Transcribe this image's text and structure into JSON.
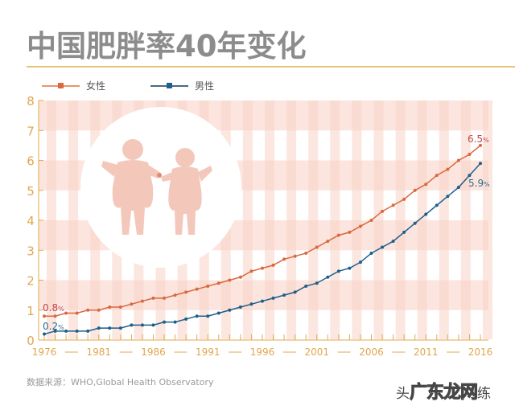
{
  "header": {
    "title": "中国肥胖率40年变化"
  },
  "legend": {
    "items": [
      {
        "label": "女性",
        "color": "#d9693f"
      },
      {
        "label": "男性",
        "color": "#1f5f8b"
      }
    ]
  },
  "annotations": {
    "female_start": "0.8",
    "male_start": "0.2",
    "female_end": "6.5",
    "male_end": "5.9",
    "pct_suffix": "%"
  },
  "footer": {
    "source": "数据来源：WHO,Global Health Observatory",
    "watermark_prefix": "头",
    "watermark_big": "广东龙网",
    "watermark_suffix": "练"
  },
  "colors": {
    "axis": "#e2a94e",
    "tick_label": "#e0a74f",
    "female": "#d9693f",
    "male": "#1f5f8b",
    "band_pink": "#fbe1d8",
    "stripe_pink": "#f8d3c6",
    "figure_fill": "#f3c8bb",
    "female_label": "#c0474e",
    "male_label": "#2e6f93"
  },
  "chart_data": {
    "type": "line",
    "title": "中国肥胖率40年变化",
    "xlabel": "",
    "ylabel": "",
    "ylim": [
      0,
      8
    ],
    "yticks": [
      0,
      1,
      2,
      3,
      4,
      5,
      6,
      7,
      8
    ],
    "xtick_labels": [
      "1976",
      "1981",
      "1986",
      "1991",
      "1996",
      "2001",
      "2006",
      "2011",
      "2016"
    ],
    "x": [
      1976,
      1977,
      1978,
      1979,
      1980,
      1981,
      1982,
      1983,
      1984,
      1985,
      1986,
      1987,
      1988,
      1989,
      1990,
      1991,
      1992,
      1993,
      1994,
      1995,
      1996,
      1997,
      1998,
      1999,
      2000,
      2001,
      2002,
      2003,
      2004,
      2005,
      2006,
      2007,
      2008,
      2009,
      2010,
      2011,
      2012,
      2013,
      2014,
      2015,
      2016
    ],
    "series": [
      {
        "name": "女性",
        "values": [
          0.8,
          0.8,
          0.9,
          0.9,
          1.0,
          1.0,
          1.1,
          1.1,
          1.2,
          1.3,
          1.4,
          1.4,
          1.5,
          1.6,
          1.7,
          1.8,
          1.9,
          2.0,
          2.1,
          2.3,
          2.4,
          2.5,
          2.7,
          2.8,
          2.9,
          3.1,
          3.3,
          3.5,
          3.6,
          3.8,
          4.0,
          4.3,
          4.5,
          4.7,
          5.0,
          5.2,
          5.5,
          5.7,
          6.0,
          6.2,
          6.5
        ]
      },
      {
        "name": "男性",
        "values": [
          0.2,
          0.3,
          0.3,
          0.3,
          0.3,
          0.4,
          0.4,
          0.4,
          0.5,
          0.5,
          0.5,
          0.6,
          0.6,
          0.7,
          0.8,
          0.8,
          0.9,
          1.0,
          1.1,
          1.2,
          1.3,
          1.4,
          1.5,
          1.6,
          1.8,
          1.9,
          2.1,
          2.3,
          2.4,
          2.6,
          2.9,
          3.1,
          3.3,
          3.6,
          3.9,
          4.2,
          4.5,
          4.8,
          5.1,
          5.5,
          5.9
        ]
      }
    ],
    "annotations": [
      "0.8%",
      "0.2%",
      "6.5%",
      "5.9%"
    ],
    "legend_position": "top-left",
    "grid": false,
    "unit": "%"
  }
}
